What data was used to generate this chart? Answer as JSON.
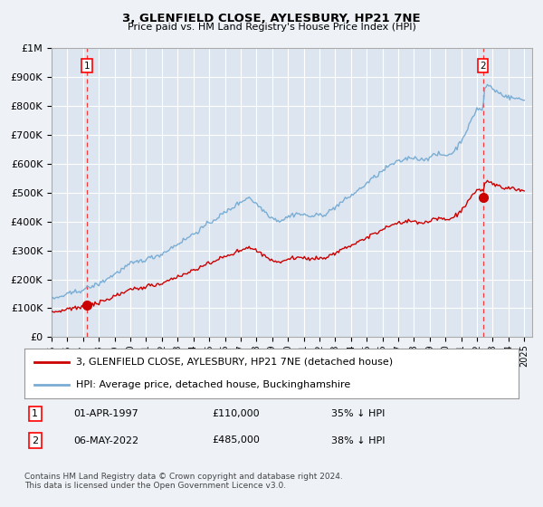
{
  "title": "3, GLENFIELD CLOSE, AYLESBURY, HP21 7NE",
  "subtitle": "Price paid vs. HM Land Registry's House Price Index (HPI)",
  "bg_color": "#eef2f7",
  "plot_bg_color": "#dde6f0",
  "grid_color": "#ffffff",
  "hpi_color": "#7aadd4",
  "price_color": "#cc0000",
  "marker_color": "#cc0000",
  "transaction1_date": 1997.25,
  "transaction1_price": 110000,
  "transaction2_date": 2022.37,
  "transaction2_price": 485000,
  "ylim_max": 1000000,
  "legend_label1": "3, GLENFIELD CLOSE, AYLESBURY, HP21 7NE (detached house)",
  "legend_label2": "HPI: Average price, detached house, Buckinghamshire",
  "note1_label": "1",
  "note1_date": "01-APR-1997",
  "note1_price": "£110,000",
  "note1_hpi": "35% ↓ HPI",
  "note2_label": "2",
  "note2_date": "06-MAY-2022",
  "note2_price": "£485,000",
  "note2_hpi": "38% ↓ HPI",
  "footer": "Contains HM Land Registry data © Crown copyright and database right 2024.\nThis data is licensed under the Open Government Licence v3.0."
}
